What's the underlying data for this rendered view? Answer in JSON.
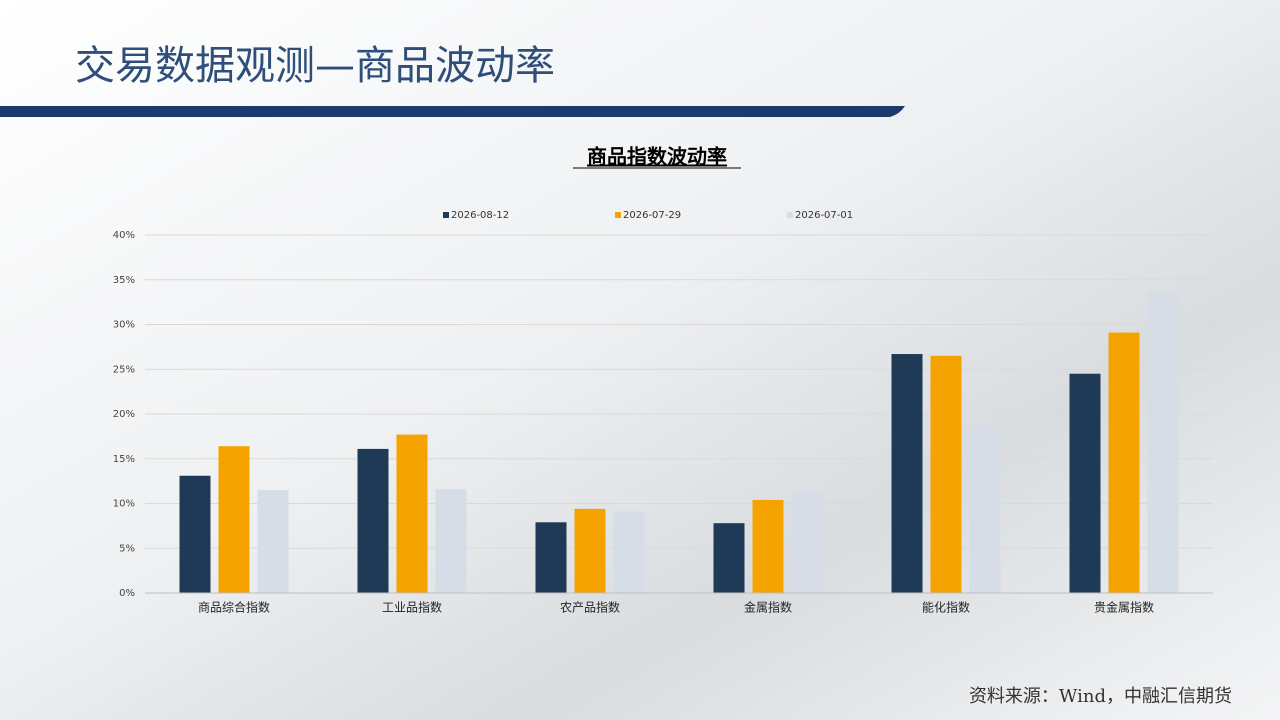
{
  "header": {
    "title": "交易数据观测—商品波动率"
  },
  "chart_data": {
    "type": "bar",
    "title": "商品指数波动率",
    "categories": [
      "商品综合指数",
      "工业品指数",
      "农产品指数",
      "金属指数",
      "能化指数",
      "贵金属指数"
    ],
    "series": [
      {
        "name": "2026-08-12",
        "color": "#1f3a56",
        "values": [
          13.1,
          16.1,
          7.9,
          7.8,
          26.7,
          24.5
        ]
      },
      {
        "name": "2026-07-29",
        "color": "#f5a300",
        "values": [
          16.4,
          17.7,
          9.4,
          10.4,
          26.5,
          29.1
        ]
      },
      {
        "name": "2026-07-01",
        "color": "#d6dde6",
        "values": [
          11.5,
          11.6,
          9.1,
          11.3,
          18.8,
          33.6
        ]
      }
    ],
    "ylim": [
      0,
      40
    ],
    "yticks": [
      {
        "value": 0,
        "label": "0%"
      },
      {
        "value": 5,
        "label": "5%"
      },
      {
        "value": 10,
        "label": "10%"
      },
      {
        "value": 15,
        "label": "15%"
      },
      {
        "value": 20,
        "label": "20%"
      },
      {
        "value": 25,
        "label": "25%"
      },
      {
        "value": 30,
        "label": "30%"
      },
      {
        "value": 35,
        "label": "35%"
      },
      {
        "value": 40,
        "label": "40%"
      }
    ],
    "grid": true,
    "legend": "top"
  },
  "footer": {
    "source": "资料来源：Wind，中融汇信期货"
  }
}
